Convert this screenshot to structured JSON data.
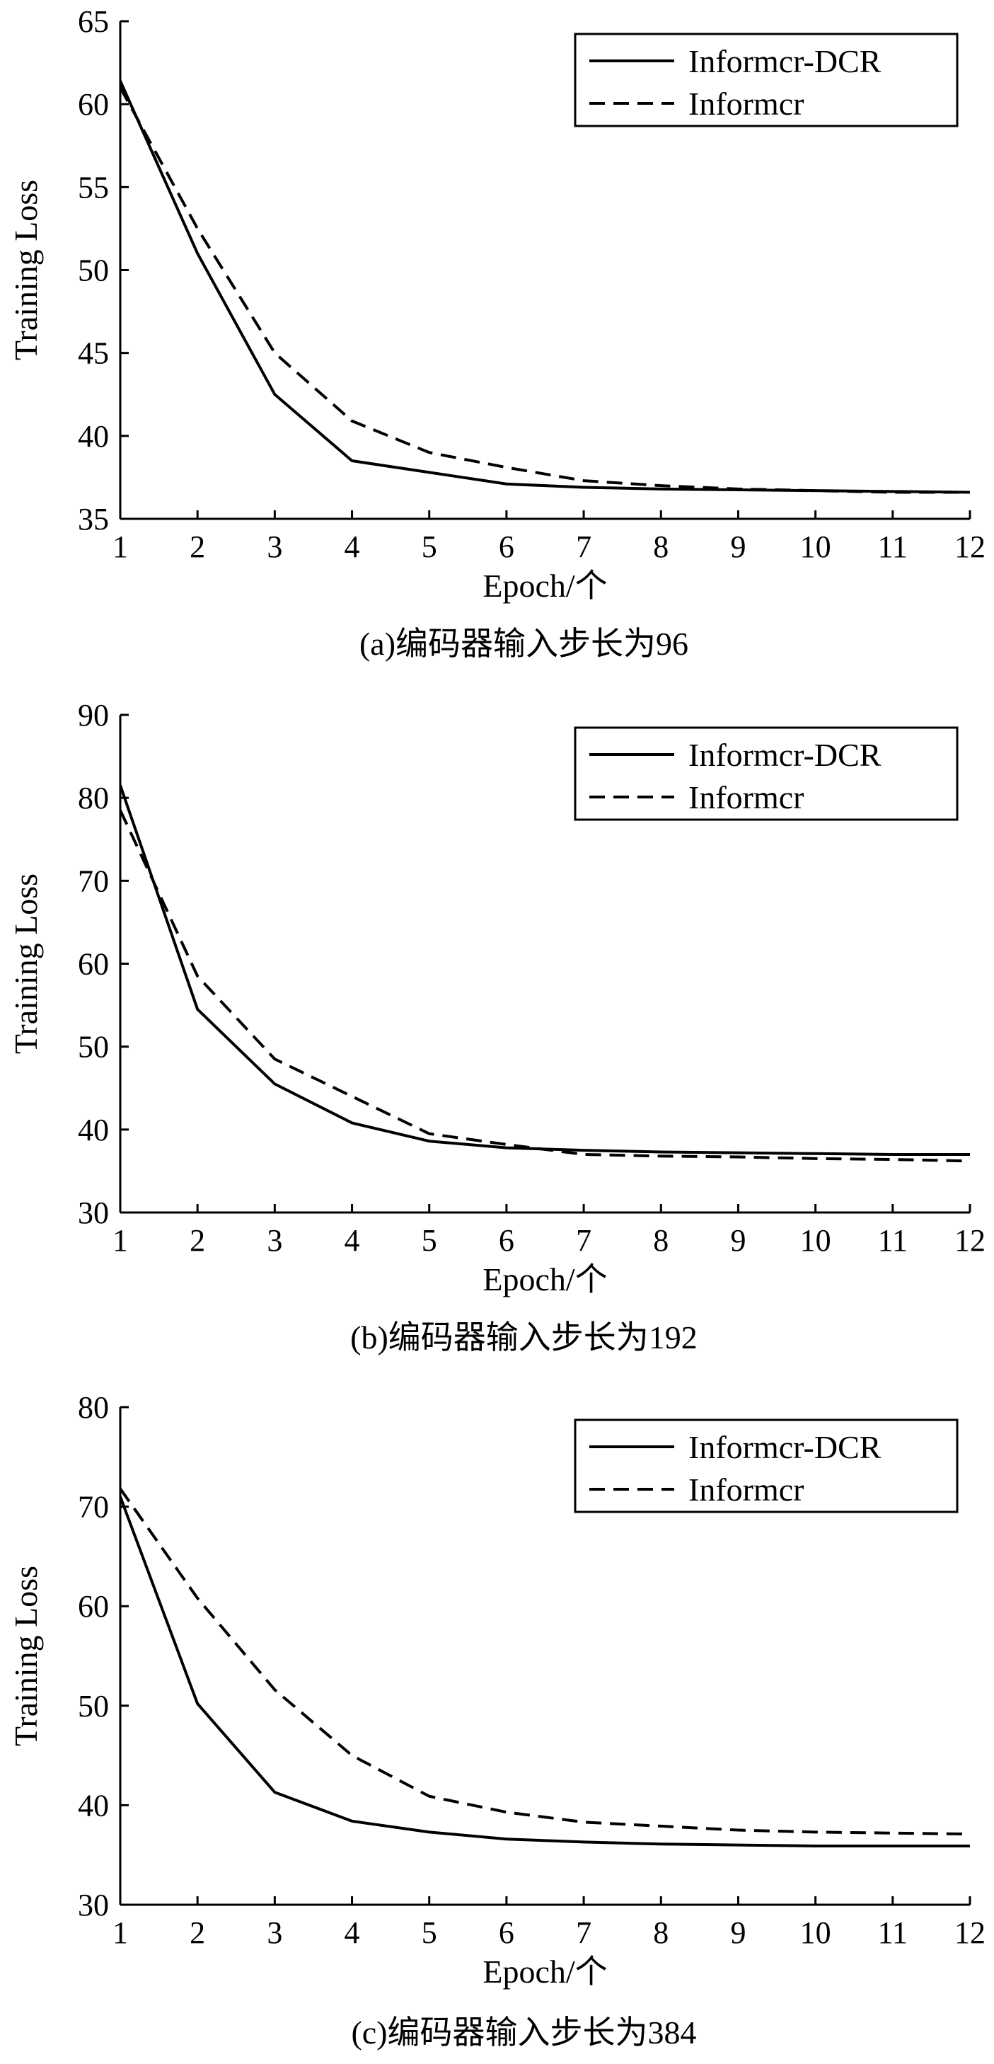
{
  "chart_data": [
    {
      "type": "line",
      "caption": "(a)编码器输入步长为96",
      "xlabel": "Epoch/个",
      "ylabel": "Training Loss",
      "x": [
        1,
        2,
        3,
        4,
        5,
        6,
        7,
        8,
        9,
        10,
        11,
        12
      ],
      "xticks": [
        "1",
        "2",
        "3",
        "4",
        "5",
        "6",
        "7",
        "8",
        "9",
        "10",
        "11",
        "12"
      ],
      "xlim": [
        1,
        12
      ],
      "ylim": [
        35,
        65
      ],
      "yticks": [
        "35",
        "40",
        "45",
        "50",
        "55",
        "60",
        "65"
      ],
      "grid": false,
      "legend_position": "top-right",
      "series": [
        {
          "name": "Informcr-DCR",
          "style": "solid",
          "values": [
            61.4,
            51.0,
            42.5,
            38.5,
            37.8,
            37.1,
            36.9,
            36.8,
            36.75,
            36.7,
            36.65,
            36.6
          ]
        },
        {
          "name": "Informcr",
          "style": "dashed",
          "values": [
            61.0,
            52.5,
            45.0,
            40.9,
            39.0,
            38.1,
            37.3,
            37.0,
            36.8,
            36.7,
            36.6,
            36.6
          ]
        }
      ]
    },
    {
      "type": "line",
      "caption": "(b)编码器输入步长为192",
      "xlabel": "Epoch/个",
      "ylabel": "Training Loss",
      "x": [
        1,
        2,
        3,
        4,
        5,
        6,
        7,
        8,
        9,
        10,
        11,
        12
      ],
      "xticks": [
        "1",
        "2",
        "3",
        "4",
        "5",
        "6",
        "7",
        "8",
        "9",
        "10",
        "11",
        "12"
      ],
      "xlim": [
        1,
        12
      ],
      "ylim": [
        30,
        90
      ],
      "yticks": [
        "30",
        "40",
        "50",
        "60",
        "70",
        "80",
        "90"
      ],
      "grid": false,
      "legend_position": "top-right",
      "series": [
        {
          "name": "Informcr-DCR",
          "style": "solid",
          "values": [
            81.5,
            54.5,
            45.5,
            40.8,
            38.6,
            37.8,
            37.5,
            37.3,
            37.2,
            37.1,
            37.0,
            37.0
          ]
        },
        {
          "name": "Informcr",
          "style": "dashed",
          "values": [
            78.5,
            58.5,
            48.5,
            44.0,
            39.5,
            38.2,
            37.0,
            36.8,
            36.7,
            36.5,
            36.4,
            36.2
          ]
        }
      ]
    },
    {
      "type": "line",
      "caption": "(c)编码器输入步长为384",
      "xlabel": "Epoch/个",
      "ylabel": "Training Loss",
      "x": [
        1,
        2,
        3,
        4,
        5,
        6,
        7,
        8,
        9,
        10,
        11,
        12
      ],
      "xticks": [
        "1",
        "2",
        "3",
        "4",
        "5",
        "6",
        "7",
        "8",
        "9",
        "10",
        "11",
        "12"
      ],
      "xlim": [
        1,
        12
      ],
      "ylim": [
        30,
        80
      ],
      "yticks": [
        "30",
        "40",
        "50",
        "60",
        "70",
        "80"
      ],
      "grid": false,
      "legend_position": "top-right",
      "series": [
        {
          "name": "Informcr-DCR",
          "style": "solid",
          "values": [
            71.0,
            50.2,
            41.3,
            38.4,
            37.3,
            36.6,
            36.3,
            36.1,
            36.0,
            35.9,
            35.9,
            35.9
          ]
        },
        {
          "name": "Informcr",
          "style": "dashed",
          "values": [
            71.8,
            60.8,
            51.6,
            45.0,
            40.9,
            39.3,
            38.3,
            37.9,
            37.5,
            37.3,
            37.2,
            37.1
          ]
        }
      ]
    }
  ]
}
